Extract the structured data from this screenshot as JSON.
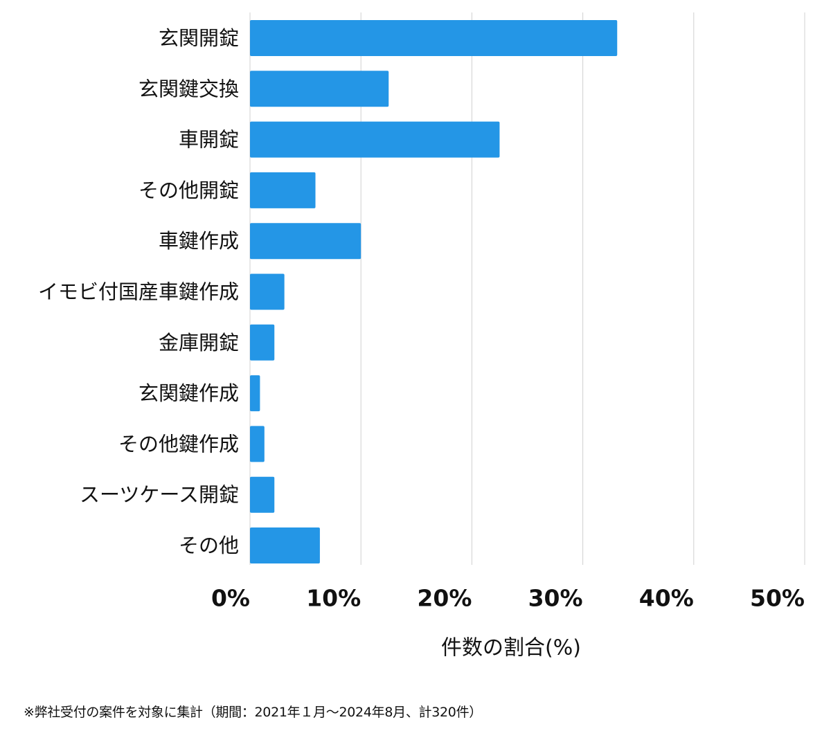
{
  "chart_data": {
    "type": "bar",
    "orientation": "horizontal",
    "categories": [
      "玄関開錠",
      "玄関鍵交換",
      "車開錠",
      "その他開錠",
      "車鍵作成",
      "イモビ付国産車鍵作成",
      "金庫開錠",
      "玄関鍵作成",
      "その他鍵作成",
      "スーツケース開錠",
      "その他"
    ],
    "values": [
      33.1,
      12.5,
      22.5,
      5.9,
      10.0,
      3.1,
      2.2,
      0.9,
      1.3,
      2.2,
      6.3
    ],
    "xlabel": "件数の割合(%)",
    "xlim": [
      0,
      50
    ],
    "xticks": [
      0,
      10,
      20,
      30,
      40,
      50
    ],
    "tick_labels": [
      "0%",
      "10%",
      "20%",
      "30%",
      "40%",
      "50%"
    ],
    "grid": true,
    "bar_color": "#2496e6",
    "grid_color": "#d0d0d0"
  },
  "footnote": "※弊社受付の案件を対象に集計（期間：2021年１月〜2024年8月、計320件）"
}
